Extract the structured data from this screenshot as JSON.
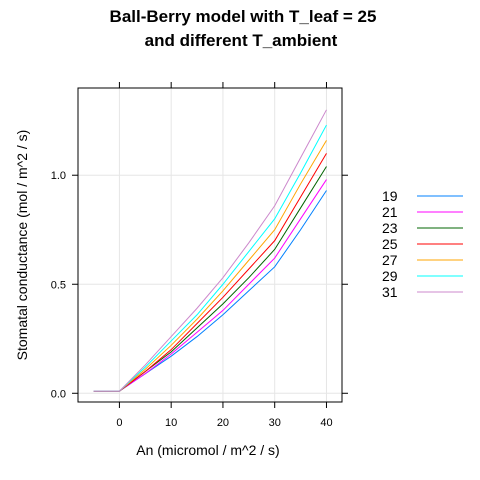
{
  "chart_data": {
    "type": "line",
    "title": [
      "Ball-Berry model with T_leaf = 25",
      "and different T_ambient"
    ],
    "xlabel": "An (micromol / m^2 / s)",
    "ylabel": "Stomatal conductance (mol / m^2 / s)",
    "xlim": [
      -8,
      43
    ],
    "ylim": [
      -0.04,
      1.4
    ],
    "x_ticks": [
      0,
      10,
      20,
      30,
      40
    ],
    "y_ticks": [
      0.0,
      0.5,
      1.0
    ],
    "x_tick_labels": [
      "0",
      "10",
      "20",
      "30",
      "40"
    ],
    "y_tick_labels": [
      "0.0",
      "0.5",
      "1.0"
    ],
    "grid": true,
    "legend_position": "right",
    "x": [
      -5,
      0,
      5,
      10,
      15,
      20,
      25,
      30,
      35,
      40
    ],
    "series": [
      {
        "name": "19",
        "color": "#0080ff",
        "values": [
          0.01,
          0.01,
          0.09,
          0.17,
          0.26,
          0.36,
          0.47,
          0.58,
          0.75,
          0.93
        ]
      },
      {
        "name": "21",
        "color": "#ff00ff",
        "values": [
          0.01,
          0.01,
          0.09,
          0.18,
          0.28,
          0.38,
          0.5,
          0.62,
          0.8,
          0.98
        ]
      },
      {
        "name": "23",
        "color": "#006400",
        "values": [
          0.01,
          0.01,
          0.1,
          0.19,
          0.3,
          0.41,
          0.53,
          0.66,
          0.85,
          1.04
        ]
      },
      {
        "name": "25",
        "color": "#ff0000",
        "values": [
          0.01,
          0.01,
          0.1,
          0.2,
          0.32,
          0.44,
          0.57,
          0.7,
          0.9,
          1.1
        ]
      },
      {
        "name": "27",
        "color": "#ffa500",
        "values": [
          0.01,
          0.01,
          0.11,
          0.22,
          0.34,
          0.47,
          0.61,
          0.75,
          0.96,
          1.16
        ]
      },
      {
        "name": "29",
        "color": "#00ffff",
        "values": [
          0.01,
          0.01,
          0.12,
          0.24,
          0.36,
          0.5,
          0.65,
          0.8,
          1.01,
          1.23
        ]
      },
      {
        "name": "31",
        "color": "#cc88cc",
        "values": [
          0.01,
          0.01,
          0.13,
          0.26,
          0.39,
          0.53,
          0.69,
          0.86,
          1.08,
          1.3
        ]
      }
    ]
  }
}
